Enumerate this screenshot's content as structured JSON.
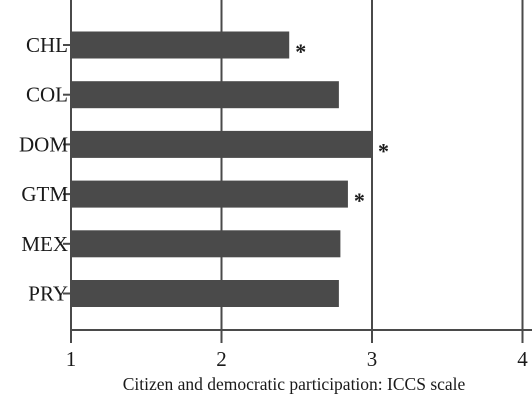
{
  "chart_data": {
    "type": "bar",
    "orientation": "horizontal",
    "categories": [
      "CHL",
      "COL",
      "DOM",
      "GTM",
      "MEX",
      "PRY"
    ],
    "values": [
      2.45,
      2.78,
      3.0,
      2.84,
      2.79,
      2.78
    ],
    "significance_markers": [
      "*",
      "",
      "*",
      "*",
      "",
      ""
    ],
    "xlabel": "Citizen and democratic participation: ICCS scale",
    "ylabel": "",
    "xlim": [
      1,
      4
    ],
    "xticks": [
      "1",
      "2",
      "3",
      "4"
    ],
    "grid": "vertical lines at ticks",
    "colors": {
      "bar": "#4a4a4a",
      "axis": "#4a4a4a",
      "text": "#1a1a1a"
    }
  }
}
